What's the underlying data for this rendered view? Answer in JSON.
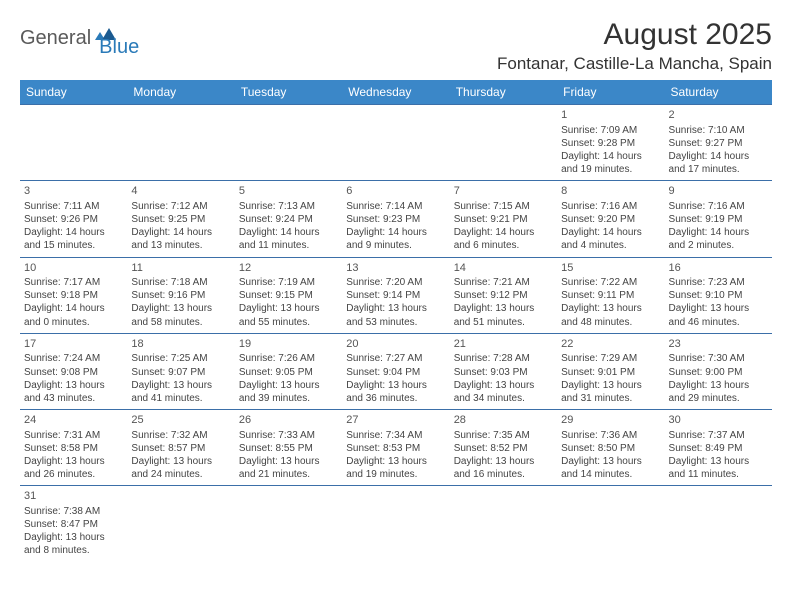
{
  "logo": {
    "text1": "General",
    "text2": "Blue"
  },
  "title": "August 2025",
  "location": "Fontanar, Castille-La Mancha, Spain",
  "colors": {
    "header_bg": "#3b87c8",
    "header_text": "#ffffff",
    "border": "#3b6fa8",
    "logo_gray": "#5a5a5a",
    "logo_blue": "#2a7ab8"
  },
  "weekdays": [
    "Sunday",
    "Monday",
    "Tuesday",
    "Wednesday",
    "Thursday",
    "Friday",
    "Saturday"
  ],
  "weeks": [
    [
      null,
      null,
      null,
      null,
      null,
      {
        "n": "1",
        "sr": "Sunrise: 7:09 AM",
        "ss": "Sunset: 9:28 PM",
        "d1": "Daylight: 14 hours",
        "d2": "and 19 minutes."
      },
      {
        "n": "2",
        "sr": "Sunrise: 7:10 AM",
        "ss": "Sunset: 9:27 PM",
        "d1": "Daylight: 14 hours",
        "d2": "and 17 minutes."
      }
    ],
    [
      {
        "n": "3",
        "sr": "Sunrise: 7:11 AM",
        "ss": "Sunset: 9:26 PM",
        "d1": "Daylight: 14 hours",
        "d2": "and 15 minutes."
      },
      {
        "n": "4",
        "sr": "Sunrise: 7:12 AM",
        "ss": "Sunset: 9:25 PM",
        "d1": "Daylight: 14 hours",
        "d2": "and 13 minutes."
      },
      {
        "n": "5",
        "sr": "Sunrise: 7:13 AM",
        "ss": "Sunset: 9:24 PM",
        "d1": "Daylight: 14 hours",
        "d2": "and 11 minutes."
      },
      {
        "n": "6",
        "sr": "Sunrise: 7:14 AM",
        "ss": "Sunset: 9:23 PM",
        "d1": "Daylight: 14 hours",
        "d2": "and 9 minutes."
      },
      {
        "n": "7",
        "sr": "Sunrise: 7:15 AM",
        "ss": "Sunset: 9:21 PM",
        "d1": "Daylight: 14 hours",
        "d2": "and 6 minutes."
      },
      {
        "n": "8",
        "sr": "Sunrise: 7:16 AM",
        "ss": "Sunset: 9:20 PM",
        "d1": "Daylight: 14 hours",
        "d2": "and 4 minutes."
      },
      {
        "n": "9",
        "sr": "Sunrise: 7:16 AM",
        "ss": "Sunset: 9:19 PM",
        "d1": "Daylight: 14 hours",
        "d2": "and 2 minutes."
      }
    ],
    [
      {
        "n": "10",
        "sr": "Sunrise: 7:17 AM",
        "ss": "Sunset: 9:18 PM",
        "d1": "Daylight: 14 hours",
        "d2": "and 0 minutes."
      },
      {
        "n": "11",
        "sr": "Sunrise: 7:18 AM",
        "ss": "Sunset: 9:16 PM",
        "d1": "Daylight: 13 hours",
        "d2": "and 58 minutes."
      },
      {
        "n": "12",
        "sr": "Sunrise: 7:19 AM",
        "ss": "Sunset: 9:15 PM",
        "d1": "Daylight: 13 hours",
        "d2": "and 55 minutes."
      },
      {
        "n": "13",
        "sr": "Sunrise: 7:20 AM",
        "ss": "Sunset: 9:14 PM",
        "d1": "Daylight: 13 hours",
        "d2": "and 53 minutes."
      },
      {
        "n": "14",
        "sr": "Sunrise: 7:21 AM",
        "ss": "Sunset: 9:12 PM",
        "d1": "Daylight: 13 hours",
        "d2": "and 51 minutes."
      },
      {
        "n": "15",
        "sr": "Sunrise: 7:22 AM",
        "ss": "Sunset: 9:11 PM",
        "d1": "Daylight: 13 hours",
        "d2": "and 48 minutes."
      },
      {
        "n": "16",
        "sr": "Sunrise: 7:23 AM",
        "ss": "Sunset: 9:10 PM",
        "d1": "Daylight: 13 hours",
        "d2": "and 46 minutes."
      }
    ],
    [
      {
        "n": "17",
        "sr": "Sunrise: 7:24 AM",
        "ss": "Sunset: 9:08 PM",
        "d1": "Daylight: 13 hours",
        "d2": "and 43 minutes."
      },
      {
        "n": "18",
        "sr": "Sunrise: 7:25 AM",
        "ss": "Sunset: 9:07 PM",
        "d1": "Daylight: 13 hours",
        "d2": "and 41 minutes."
      },
      {
        "n": "19",
        "sr": "Sunrise: 7:26 AM",
        "ss": "Sunset: 9:05 PM",
        "d1": "Daylight: 13 hours",
        "d2": "and 39 minutes."
      },
      {
        "n": "20",
        "sr": "Sunrise: 7:27 AM",
        "ss": "Sunset: 9:04 PM",
        "d1": "Daylight: 13 hours",
        "d2": "and 36 minutes."
      },
      {
        "n": "21",
        "sr": "Sunrise: 7:28 AM",
        "ss": "Sunset: 9:03 PM",
        "d1": "Daylight: 13 hours",
        "d2": "and 34 minutes."
      },
      {
        "n": "22",
        "sr": "Sunrise: 7:29 AM",
        "ss": "Sunset: 9:01 PM",
        "d1": "Daylight: 13 hours",
        "d2": "and 31 minutes."
      },
      {
        "n": "23",
        "sr": "Sunrise: 7:30 AM",
        "ss": "Sunset: 9:00 PM",
        "d1": "Daylight: 13 hours",
        "d2": "and 29 minutes."
      }
    ],
    [
      {
        "n": "24",
        "sr": "Sunrise: 7:31 AM",
        "ss": "Sunset: 8:58 PM",
        "d1": "Daylight: 13 hours",
        "d2": "and 26 minutes."
      },
      {
        "n": "25",
        "sr": "Sunrise: 7:32 AM",
        "ss": "Sunset: 8:57 PM",
        "d1": "Daylight: 13 hours",
        "d2": "and 24 minutes."
      },
      {
        "n": "26",
        "sr": "Sunrise: 7:33 AM",
        "ss": "Sunset: 8:55 PM",
        "d1": "Daylight: 13 hours",
        "d2": "and 21 minutes."
      },
      {
        "n": "27",
        "sr": "Sunrise: 7:34 AM",
        "ss": "Sunset: 8:53 PM",
        "d1": "Daylight: 13 hours",
        "d2": "and 19 minutes."
      },
      {
        "n": "28",
        "sr": "Sunrise: 7:35 AM",
        "ss": "Sunset: 8:52 PM",
        "d1": "Daylight: 13 hours",
        "d2": "and 16 minutes."
      },
      {
        "n": "29",
        "sr": "Sunrise: 7:36 AM",
        "ss": "Sunset: 8:50 PM",
        "d1": "Daylight: 13 hours",
        "d2": "and 14 minutes."
      },
      {
        "n": "30",
        "sr": "Sunrise: 7:37 AM",
        "ss": "Sunset: 8:49 PM",
        "d1": "Daylight: 13 hours",
        "d2": "and 11 minutes."
      }
    ],
    [
      {
        "n": "31",
        "sr": "Sunrise: 7:38 AM",
        "ss": "Sunset: 8:47 PM",
        "d1": "Daylight: 13 hours",
        "d2": "and 8 minutes."
      },
      null,
      null,
      null,
      null,
      null,
      null
    ]
  ]
}
